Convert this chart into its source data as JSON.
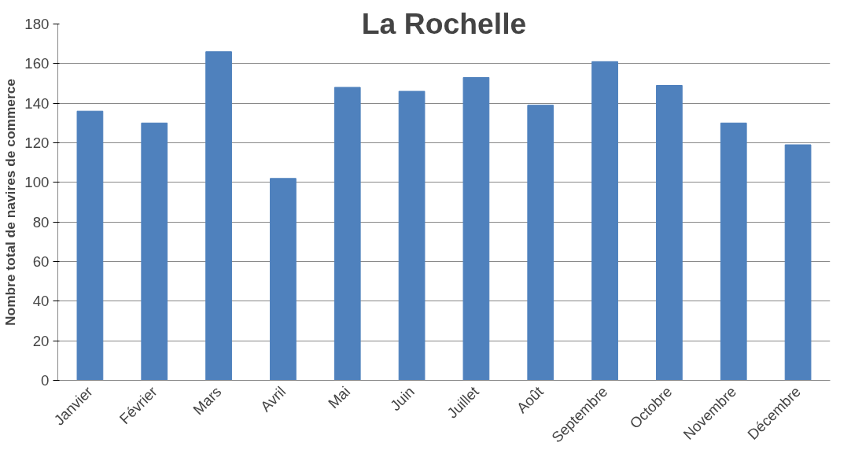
{
  "chart_data": {
    "type": "bar",
    "title": "La Rochelle",
    "ylabel": "Nombre total de navires de commerce",
    "categories": [
      "Janvier",
      "Février",
      "Mars",
      "Avril",
      "Mai",
      "Juin",
      "Juillet",
      "Août",
      "Septembre",
      "Octobre",
      "Novembre",
      "Décembre"
    ],
    "values": [
      136,
      130,
      166,
      102,
      148,
      146,
      153,
      139,
      161,
      149,
      130,
      119
    ],
    "color": "#4f81bd",
    "ylim": [
      0,
      180
    ],
    "yticks": [
      0,
      20,
      40,
      60,
      80,
      100,
      120,
      140,
      160,
      180
    ],
    "grid": "y"
  }
}
